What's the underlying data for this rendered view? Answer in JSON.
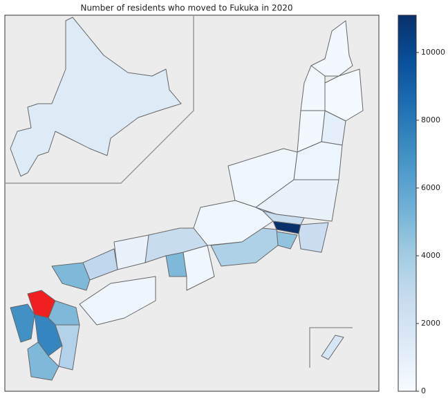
{
  "chart_data": {
    "type": "choropleth",
    "title": "Number of residents who moved to Fukuka in 2020",
    "values": [
      1400,
      300,
      200,
      300,
      1000,
      300,
      600,
      400,
      800,
      11100,
      4500,
      2500,
      2700,
      400,
      3600,
      5000,
      2700,
      400,
      800,
      3000,
      5000,
      500,
      null,
      7000,
      5000,
      7500,
      3500,
      5000,
      1800
    ],
    "highlight_color": "#f02020",
    "colors": [
      "#f7fbff",
      "#deebf7",
      "#c6dbef",
      "#9ecae1",
      "#6baed6",
      "#4292c6",
      "#2171b5",
      "#08519c",
      "#08306b"
    ],
    "clim": [
      0,
      11100
    ],
    "cticks": [
      0,
      2000,
      4000,
      6000,
      8000,
      10000
    ]
  }
}
